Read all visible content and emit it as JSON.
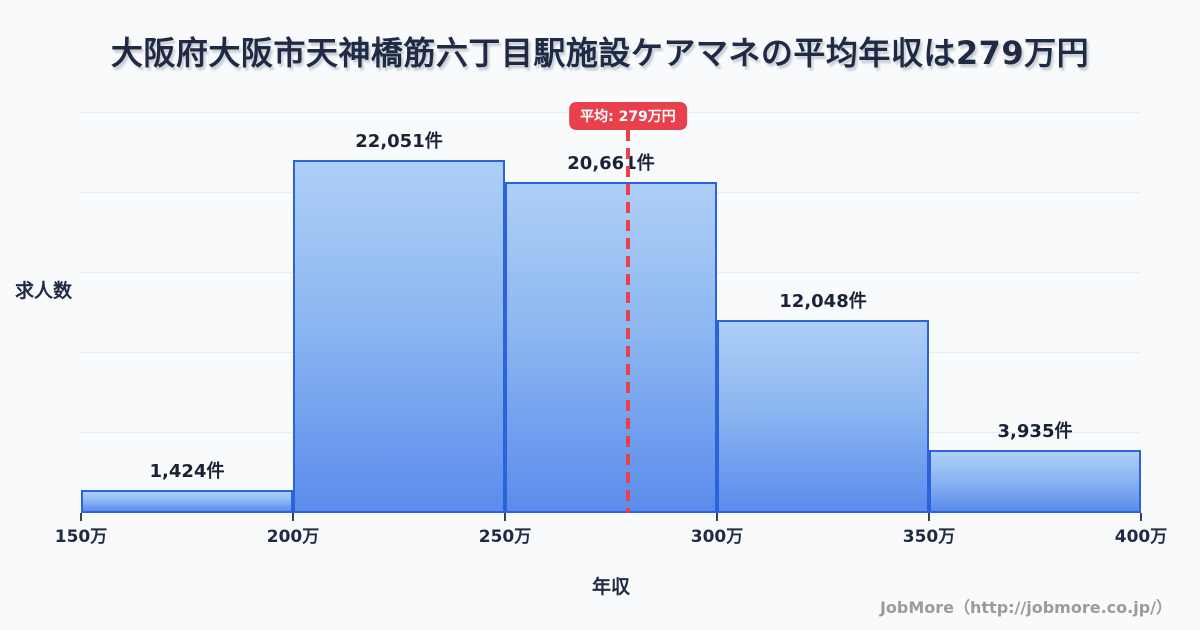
{
  "header": {
    "title": "大阪府大阪市天神橋筋六丁目駅施設ケアマネの平均年収は279万円"
  },
  "chart_data": {
    "type": "bar",
    "title": "大阪府大阪市天神橋筋六丁目駅施設ケアマネの平均年収は279万円",
    "xlabel": "年収",
    "ylabel": "求人数",
    "categories": [
      "150万-200万",
      "200万-250万",
      "250万-300万",
      "300万-350万",
      "350万-400万"
    ],
    "values": [
      1424,
      22051,
      20661,
      12048,
      3935
    ],
    "bar_labels": [
      "1,424件",
      "22,051件",
      "20,661件",
      "12,048件",
      "3,935件"
    ],
    "x_tick_labels": [
      "150万",
      "200万",
      "250万",
      "300万",
      "350万",
      "400万"
    ],
    "x_range": [
      150,
      400
    ],
    "ylim": [
      0,
      25600
    ],
    "grid": true,
    "grid_interval": 5000,
    "legend": "none",
    "mean": {
      "value": 279,
      "label": "平均: 279万円"
    },
    "colors": {
      "background": "#f8fafc",
      "bar_fill_top": "#aecff7",
      "bar_fill_bottom": "#5b8cec",
      "bar_border": "#2b63db",
      "mean_line": "#e8414d",
      "badge_bg": "#e8414d",
      "badge_text": "#ffffff",
      "title_text": "#1f2a44",
      "grid_color": "#e7ebf2"
    }
  },
  "footer": {
    "credit": "JobMore（http://jobmore.co.jp/）"
  }
}
